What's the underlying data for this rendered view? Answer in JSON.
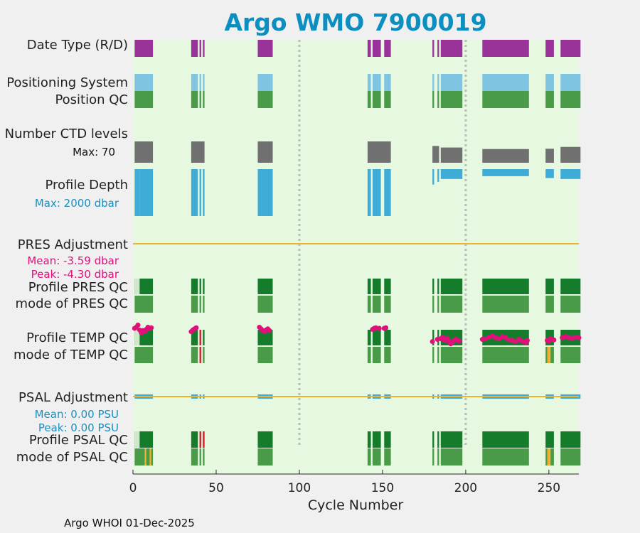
{
  "chart_data": {
    "type": "timeline-strips",
    "title": "Argo WMO 7900019",
    "xlabel": "Cycle Number",
    "xlim": [
      0,
      268
    ],
    "xticks": [
      0,
      50,
      100,
      150,
      200,
      250
    ],
    "vlines": [
      100,
      200
    ],
    "footer": "Argo WHOI 01-Dec-2025",
    "colors": {
      "plot_bg": "#e6f9e0",
      "delayed": "#993399",
      "realtime": "#cc66cc",
      "positioning": "#7fc4e0",
      "qc_good": "#4a9b48",
      "qc_dark": "#157c2b",
      "qc_light": "#cfe6c9",
      "qc_probable": "#f0b030",
      "qc_bad": "#e01e2c",
      "ctd": "#707070",
      "depth": "#3eacd6",
      "adjust_line": "#f0b030",
      "mean_text": "#e0107a",
      "max_text": "#1a8fc0",
      "points": "#e0107a"
    },
    "labels": {
      "date_type": "Date Type (R/D)",
      "positioning": "Positioning System",
      "position_qc": "Position QC",
      "num_ctd": "Number CTD levels",
      "num_ctd_max": "Max: 70",
      "profile_depth": "Profile Depth",
      "profile_depth_max": "Max: 2000 dbar",
      "pres_adj": "PRES Adjustment",
      "pres_mean": "Mean: -3.59 dbar",
      "pres_peak": "Peak: -4.30 dbar",
      "profile_pres_qc": "Profile PRES QC",
      "mode_pres_qc": "mode of PRES QC",
      "profile_temp_qc": "Profile TEMP QC",
      "mode_temp_qc": "mode of TEMP QC",
      "psal_adj": "PSAL Adjustment",
      "psal_mean": "Mean: 0.00 PSU",
      "psal_peak": "Peak: 0.00 PSU",
      "profile_psal_qc": "Profile PSAL QC",
      "mode_psal_qc": "mode of PSAL QC"
    },
    "cycle_ranges": [
      [
        1,
        12
      ],
      [
        35,
        39
      ],
      [
        40,
        41
      ],
      [
        42,
        43
      ],
      [
        75,
        84
      ],
      [
        141,
        143
      ],
      [
        144,
        149
      ],
      [
        151,
        155
      ],
      [
        180,
        181
      ],
      [
        183,
        184
      ],
      [
        185,
        198
      ],
      [
        210,
        238
      ],
      [
        248,
        253
      ],
      [
        257,
        269
      ]
    ],
    "profile_depth_values": [
      {
        "range": [
          1,
          4
        ],
        "depth": 2000
      },
      {
        "range": [
          4,
          12
        ],
        "depth": 2000
      },
      {
        "range": [
          35,
          39
        ],
        "depth": 2000
      },
      {
        "range": [
          40,
          41
        ],
        "depth": 2000
      },
      {
        "range": [
          42,
          43
        ],
        "depth": 2000
      },
      {
        "range": [
          75,
          84
        ],
        "depth": 2000
      },
      {
        "range": [
          141,
          143
        ],
        "depth": 2000
      },
      {
        "range": [
          144,
          149
        ],
        "depth": 2000
      },
      {
        "range": [
          151,
          155
        ],
        "depth": 2000
      },
      {
        "range": [
          180,
          181
        ],
        "depth": 660
      },
      {
        "range": [
          183,
          184
        ],
        "depth": 540
      },
      {
        "range": [
          185,
          198
        ],
        "depth": 420
      },
      {
        "range": [
          210,
          238
        ],
        "depth": 300
      },
      {
        "range": [
          248,
          253
        ],
        "depth": 380
      },
      {
        "range": [
          257,
          269
        ],
        "depth": 420
      }
    ],
    "ctd_levels": [
      {
        "range": [
          1,
          12
        ],
        "levels": 70
      },
      {
        "range": [
          35,
          43
        ],
        "levels": 70
      },
      {
        "range": [
          75,
          84
        ],
        "levels": 70
      },
      {
        "range": [
          141,
          155
        ],
        "levels": 70
      },
      {
        "range": [
          180,
          184
        ],
        "levels": 55
      },
      {
        "range": [
          185,
          198
        ],
        "levels": 50
      },
      {
        "range": [
          210,
          238
        ],
        "levels": 45
      },
      {
        "range": [
          248,
          253
        ],
        "levels": 46
      },
      {
        "range": [
          257,
          269
        ],
        "levels": 52
      }
    ],
    "temp_qc_points": [
      [
        1,
        66
      ],
      [
        2,
        68
      ],
      [
        3,
        72
      ],
      [
        4,
        63
      ],
      [
        5,
        58
      ],
      [
        6,
        62
      ],
      [
        7,
        60
      ],
      [
        8,
        64
      ],
      [
        9,
        68
      ],
      [
        10,
        66
      ],
      [
        11,
        67
      ],
      [
        35,
        60
      ],
      [
        36,
        63
      ],
      [
        37,
        65
      ],
      [
        38,
        67
      ],
      [
        76,
        68
      ],
      [
        77,
        65
      ],
      [
        78,
        62
      ],
      [
        79,
        60
      ],
      [
        80,
        63
      ],
      [
        81,
        65
      ],
      [
        82,
        62
      ],
      [
        144,
        64
      ],
      [
        145,
        66
      ],
      [
        146,
        67
      ],
      [
        148,
        66
      ],
      [
        151,
        66
      ],
      [
        152,
        67
      ],
      [
        180,
        42
      ],
      [
        183,
        46
      ],
      [
        185,
        47
      ],
      [
        186,
        50
      ],
      [
        187,
        45
      ],
      [
        188,
        44
      ],
      [
        189,
        48
      ],
      [
        190,
        42
      ],
      [
        191,
        38
      ],
      [
        192,
        41
      ],
      [
        193,
        44
      ],
      [
        194,
        46
      ],
      [
        195,
        45
      ],
      [
        196,
        43
      ],
      [
        210,
        46
      ],
      [
        212,
        47
      ],
      [
        214,
        50
      ],
      [
        216,
        52
      ],
      [
        218,
        49
      ],
      [
        220,
        47
      ],
      [
        222,
        51
      ],
      [
        224,
        49
      ],
      [
        226,
        45
      ],
      [
        228,
        44
      ],
      [
        230,
        42
      ],
      [
        232,
        46
      ],
      [
        234,
        43
      ],
      [
        236,
        40
      ],
      [
        237,
        44
      ],
      [
        249,
        44
      ],
      [
        250,
        43
      ],
      [
        251,
        47
      ],
      [
        253,
        45
      ],
      [
        258,
        49
      ],
      [
        260,
        51
      ],
      [
        262,
        49
      ],
      [
        264,
        48
      ],
      [
        266,
        50
      ],
      [
        268,
        49
      ]
    ]
  }
}
